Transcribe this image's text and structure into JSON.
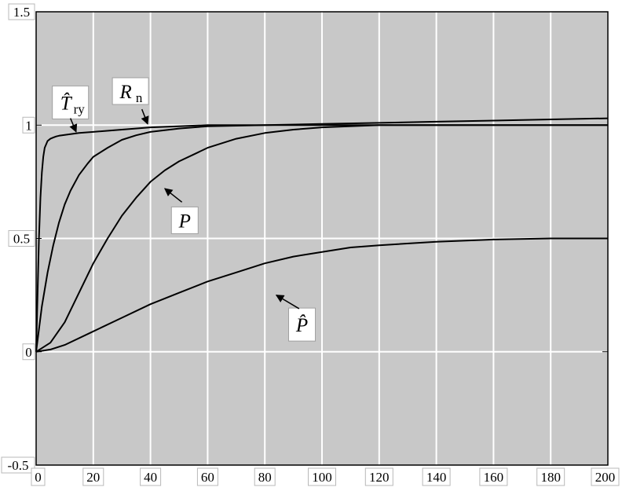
{
  "chart_data": {
    "type": "line",
    "xlim": [
      0,
      200
    ],
    "ylim": [
      -0.5,
      1.5
    ],
    "x_ticks": [
      "0",
      "20",
      "40",
      "60",
      "80",
      "100",
      "120",
      "140",
      "160",
      "180",
      "200"
    ],
    "y_ticks": [
      "-0.5",
      "0",
      "0.5",
      "1",
      "1.5"
    ],
    "grid": true,
    "background_color": "#c8c8c8",
    "grid_color": "#ffffff",
    "line_color": "#000000",
    "series": [
      {
        "id": "T-hat-ry",
        "x": [
          0,
          0.5,
          1,
          1.5,
          2,
          2.5,
          3,
          4,
          5,
          6,
          7,
          8,
          10,
          12,
          15,
          20,
          30,
          40,
          60,
          80,
          100,
          120,
          140,
          160,
          180,
          200
        ],
        "y": [
          0,
          0.25,
          0.5,
          0.68,
          0.79,
          0.86,
          0.9,
          0.93,
          0.94,
          0.945,
          0.95,
          0.953,
          0.957,
          0.96,
          0.965,
          0.97,
          0.98,
          0.99,
          1.0,
          1.0,
          1.0,
          1.0,
          1.0,
          1.0,
          1.0,
          1.0
        ]
      },
      {
        "id": "Rn",
        "x": [
          0,
          2,
          4,
          6,
          8,
          10,
          12,
          15,
          18,
          20,
          25,
          30,
          35,
          40,
          50,
          60,
          80,
          100,
          120,
          140,
          160,
          180,
          200
        ],
        "y": [
          0,
          0.2,
          0.35,
          0.47,
          0.57,
          0.65,
          0.71,
          0.78,
          0.83,
          0.86,
          0.9,
          0.935,
          0.955,
          0.97,
          0.985,
          0.995,
          1.0,
          1.005,
          1.01,
          1.015,
          1.02,
          1.025,
          1.03
        ]
      },
      {
        "id": "P",
        "x": [
          0,
          5,
          10,
          15,
          20,
          25,
          30,
          35,
          40,
          45,
          50,
          55,
          60,
          70,
          80,
          90,
          100,
          120,
          140,
          160,
          180,
          200
        ],
        "y": [
          0,
          0.04,
          0.13,
          0.26,
          0.39,
          0.5,
          0.6,
          0.68,
          0.75,
          0.8,
          0.84,
          0.87,
          0.9,
          0.94,
          0.965,
          0.98,
          0.99,
          1.0,
          1.0,
          1.0,
          1.0,
          1.0
        ]
      },
      {
        "id": "P-hat",
        "x": [
          0,
          5,
          10,
          20,
          30,
          40,
          50,
          60,
          70,
          80,
          90,
          100,
          110,
          120,
          140,
          160,
          180,
          200
        ],
        "y": [
          0,
          0.01,
          0.03,
          0.09,
          0.15,
          0.21,
          0.26,
          0.31,
          0.35,
          0.39,
          0.42,
          0.44,
          0.46,
          0.47,
          0.485,
          0.495,
          0.5,
          0.5
        ]
      }
    ],
    "annotations": [
      {
        "series": "T-hat-ry",
        "main": "T̂",
        "sub": "ry",
        "at": [
          12,
          1.1
        ],
        "arrow_from": [
          12,
          1.03
        ],
        "arrow_to": [
          14,
          0.97
        ]
      },
      {
        "series": "Rn",
        "main": "R",
        "sub": "n",
        "at": [
          33,
          1.15
        ],
        "arrow_from": [
          37,
          1.07
        ],
        "arrow_to": [
          39,
          1.005
        ]
      },
      {
        "series": "P",
        "main": "P",
        "sub": "",
        "at": [
          52,
          0.58
        ],
        "arrow_from": [
          51,
          0.66
        ],
        "arrow_to": [
          45,
          0.72
        ]
      },
      {
        "series": "P-hat",
        "main": "P̂",
        "sub": "",
        "at": [
          93,
          0.12
        ],
        "arrow_from": [
          92,
          0.19
        ],
        "arrow_to": [
          84,
          0.25
        ]
      }
    ]
  }
}
